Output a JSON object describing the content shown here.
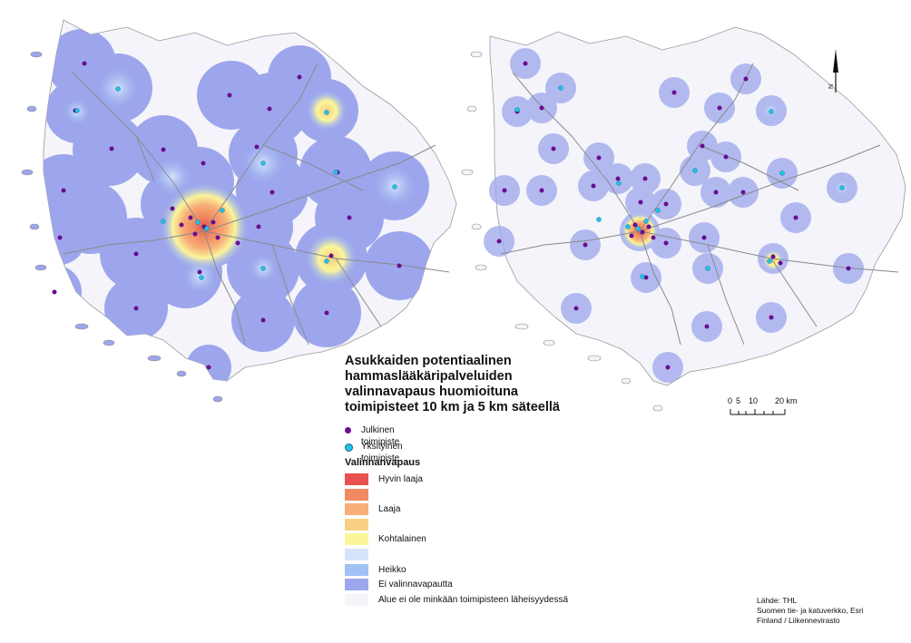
{
  "title_lines": [
    "Asukkaiden potentiaalinen",
    "hammaslääkäripalveluiden",
    "valinnavapaus huomioituna",
    "toimipisteet 10 km ja 5 km säteellä"
  ],
  "points": {
    "public": {
      "label": "Julkinen toimipiste",
      "color": "#6a0d91"
    },
    "private": {
      "label": "Yksityinen toimipiste",
      "color": "#1fc4e6"
    }
  },
  "legend": {
    "title": "Valinnanvapaus",
    "classes": [
      {
        "label": "Hyvin laaja",
        "color": "#e8514f"
      },
      {
        "label": "",
        "color": "#f08a62"
      },
      {
        "label": "Laaja",
        "color": "#f7ae77"
      },
      {
        "label": "",
        "color": "#f8d083"
      },
      {
        "label": "Kohtalainen",
        "color": "#faf59a"
      },
      {
        "label": "",
        "color": "#d6e3fb"
      },
      {
        "label": "Heikko",
        "color": "#a0c2f5"
      },
      {
        "label": "Ei valinnavapautta",
        "color": "#9da6ec"
      },
      {
        "label": "Alue ei ole minkään toimipisteen läheisyydessä",
        "color": "#f4f4fa"
      }
    ]
  },
  "scale": {
    "labels": [
      "0",
      "5",
      "10",
      "20 km"
    ]
  },
  "north_label": "N",
  "source_lines": [
    "Lähde: THL",
    "Suomen tie- ja katuverkko, Esri",
    "Finland / Liikennevirasto"
  ]
}
